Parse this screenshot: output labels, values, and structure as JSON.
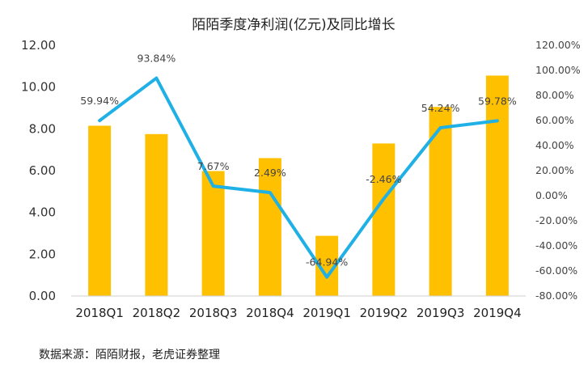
{
  "chart_data": {
    "type": "bar",
    "title": "陌陌季度净利润(亿元)及同比增长",
    "categories": [
      "2018Q1",
      "2018Q2",
      "2018Q3",
      "2018Q4",
      "2019Q1",
      "2019Q2",
      "2019Q3",
      "2019Q4"
    ],
    "series": [
      {
        "type": "bar",
        "axis": "left",
        "color": "#FFC000",
        "values": [
          8.15,
          7.75,
          5.98,
          6.6,
          2.88,
          7.3,
          9.05,
          10.55
        ]
      },
      {
        "type": "line",
        "axis": "right",
        "color": "#1FB0E6",
        "values": [
          59.94,
          93.84,
          7.67,
          2.49,
          -64.94,
          -2.46,
          54.24,
          59.78
        ],
        "data_labels": [
          "59.94%",
          "93.84%",
          "7.67%",
          "2.49%",
          "-64.94%",
          "-2.46%",
          "54.24%",
          "59.78%"
        ]
      }
    ],
    "left_axis": {
      "ylim": [
        0,
        12
      ],
      "ticks": [
        "0.00",
        "2.00",
        "4.00",
        "6.00",
        "8.00",
        "10.00",
        "12.00"
      ]
    },
    "right_axis": {
      "ylim": [
        -80,
        120
      ],
      "ticks": [
        "-80.00%",
        "-60.00%",
        "-40.00%",
        "-20.00%",
        "0.00%",
        "20.00%",
        "40.00%",
        "60.00%",
        "80.00%",
        "100.00%",
        "120.00%"
      ]
    },
    "grid": false,
    "legend": "none"
  },
  "source_note": "数据来源：陌陌财报，老虎证券整理"
}
